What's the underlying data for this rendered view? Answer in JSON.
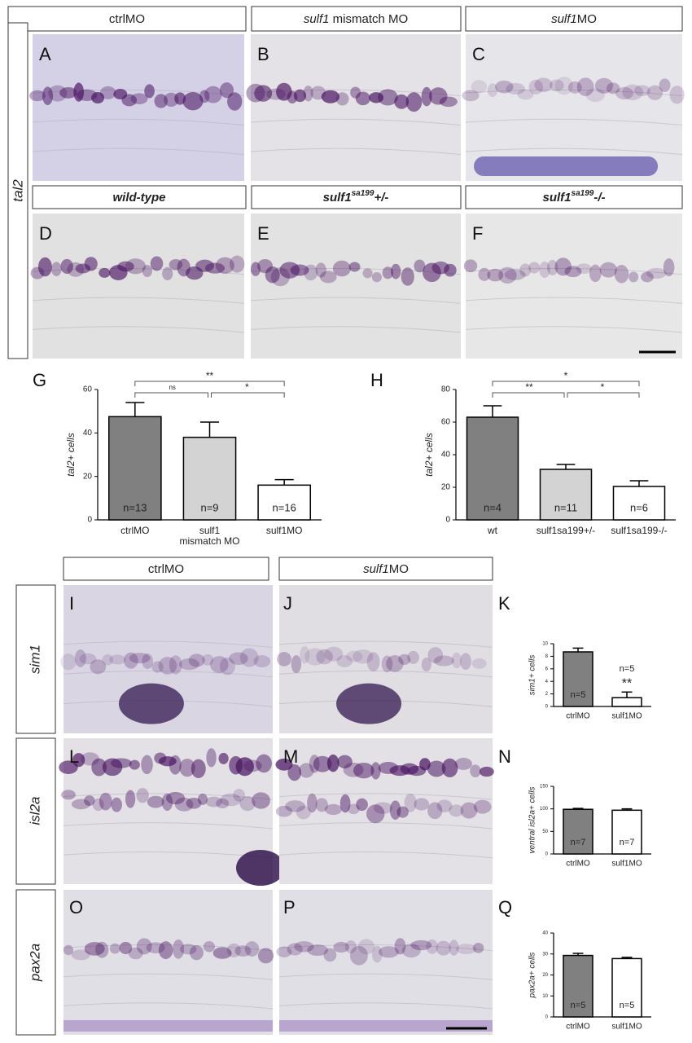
{
  "headers": [
    [
      "ctrlMO"
    ],
    [
      "sulf1",
      " mismatch MO"
    ],
    [
      "sulf1",
      "MO"
    ],
    [
      "wild-type"
    ],
    [
      "sulf1",
      "sa199",
      "+/-"
    ],
    [
      "sulf1",
      "sa199",
      "-/-"
    ],
    [
      "ctrlMO"
    ],
    [
      "sulf1",
      "MO"
    ]
  ],
  "panel_letters": [
    "A",
    "B",
    "C",
    "D",
    "E",
    "F",
    "G",
    "H",
    "I",
    "J",
    "K",
    "L",
    "M",
    "N",
    "O",
    "P",
    "Q"
  ],
  "gene_labels": [
    "tal2",
    "sim1",
    "isl2a",
    "pax2a"
  ],
  "chart_data": [
    {
      "type": "bar",
      "ylabel": "tal2+ cells",
      "categories": [
        "ctrlMO",
        [
          "sulf1",
          "mismatch MO"
        ],
        "sulf1MO"
      ],
      "values": [
        47.5,
        38,
        16
      ],
      "errors": [
        6.5,
        7,
        2.5
      ],
      "colors": [
        "#808080",
        "#d3d3d3",
        "#ffffff"
      ],
      "n_labels": [
        "n=13",
        "n=9",
        "n=16"
      ],
      "ylim": [
        0,
        60
      ],
      "yticks": [
        0,
        20,
        40,
        60
      ],
      "comparisons": [
        {
          "pair": [
            0,
            2
          ],
          "label": "**"
        },
        {
          "pair": [
            0,
            1
          ],
          "label": "ns"
        },
        {
          "pair": [
            1,
            2
          ],
          "label": "*"
        }
      ]
    },
    {
      "type": "bar",
      "ylabel": "tal2+ cells",
      "categories": [
        "wt",
        "sulf1sa199+/-",
        "sulf1sa199-/-"
      ],
      "values": [
        63,
        31,
        20.5
      ],
      "errors": [
        7,
        3,
        3.5
      ],
      "colors": [
        "#808080",
        "#d3d3d3",
        "#ffffff"
      ],
      "n_labels": [
        "n=4",
        "n=11",
        "n=6"
      ],
      "ylim": [
        0,
        80
      ],
      "yticks": [
        0,
        20,
        40,
        60,
        80
      ],
      "comparisons": [
        {
          "pair": [
            0,
            2
          ],
          "label": "*"
        },
        {
          "pair": [
            0,
            1
          ],
          "label": "**"
        },
        {
          "pair": [
            1,
            2
          ],
          "label": "*"
        }
      ]
    },
    {
      "type": "bar",
      "ylabel": "sim1+ cells",
      "categories": [
        "ctrlMO",
        "sulf1MO"
      ],
      "values": [
        8.7,
        1.4
      ],
      "errors": [
        0.6,
        0.9
      ],
      "colors": [
        "#808080",
        "#ffffff"
      ],
      "n_labels": [
        "n=5",
        "n=5"
      ],
      "ylim": [
        0,
        10
      ],
      "yticks": [
        0,
        2,
        4,
        6,
        8,
        10
      ],
      "comparisons": [
        {
          "pair": [
            1,
            1
          ],
          "label": "**"
        }
      ]
    },
    {
      "type": "bar",
      "ylabel": "ventral isl2a+ cells",
      "categories": [
        "ctrlMO",
        "sulf1MO"
      ],
      "values": [
        99,
        97
      ],
      "errors": [
        2,
        3
      ],
      "colors": [
        "#808080",
        "#ffffff"
      ],
      "n_labels": [
        "n=7",
        "n=7"
      ],
      "ylim": [
        0,
        150
      ],
      "yticks": [
        0,
        50,
        100,
        150
      ],
      "comparisons": []
    },
    {
      "type": "bar",
      "ylabel": "pax2a+ cells",
      "categories": [
        "ctrlMO",
        "sulf1MO"
      ],
      "values": [
        29.3,
        27.8
      ],
      "errors": [
        1,
        0.6
      ],
      "colors": [
        "#808080",
        "#ffffff"
      ],
      "n_labels": [
        "n=5",
        "n=5"
      ],
      "ylim": [
        0,
        40
      ],
      "yticks": [
        0,
        10,
        20,
        30,
        40
      ],
      "comparisons": []
    }
  ]
}
